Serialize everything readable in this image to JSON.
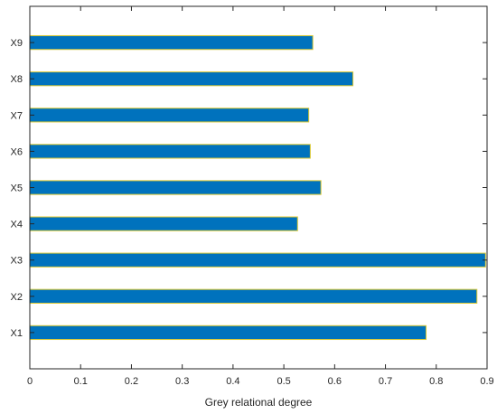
{
  "chart_data": {
    "type": "bar",
    "orientation": "horizontal",
    "categories": [
      "X1",
      "X2",
      "X3",
      "X4",
      "X5",
      "X6",
      "X7",
      "X8",
      "X9"
    ],
    "values": [
      0.78,
      0.88,
      0.897,
      0.527,
      0.573,
      0.552,
      0.549,
      0.636,
      0.557
    ],
    "title": "",
    "xlabel": "Grey relational degree",
    "ylabel": "",
    "xlim": [
      0,
      0.9
    ],
    "xticks": [
      "0",
      "0.1",
      "0.2",
      "0.3",
      "0.4",
      "0.5",
      "0.6",
      "0.7",
      "0.8",
      "0.9"
    ],
    "grid": false,
    "legend": "none",
    "colors": {
      "bar_fill": "#0072bd",
      "bar_edge": "#d9c832",
      "axis": "#262626"
    }
  }
}
